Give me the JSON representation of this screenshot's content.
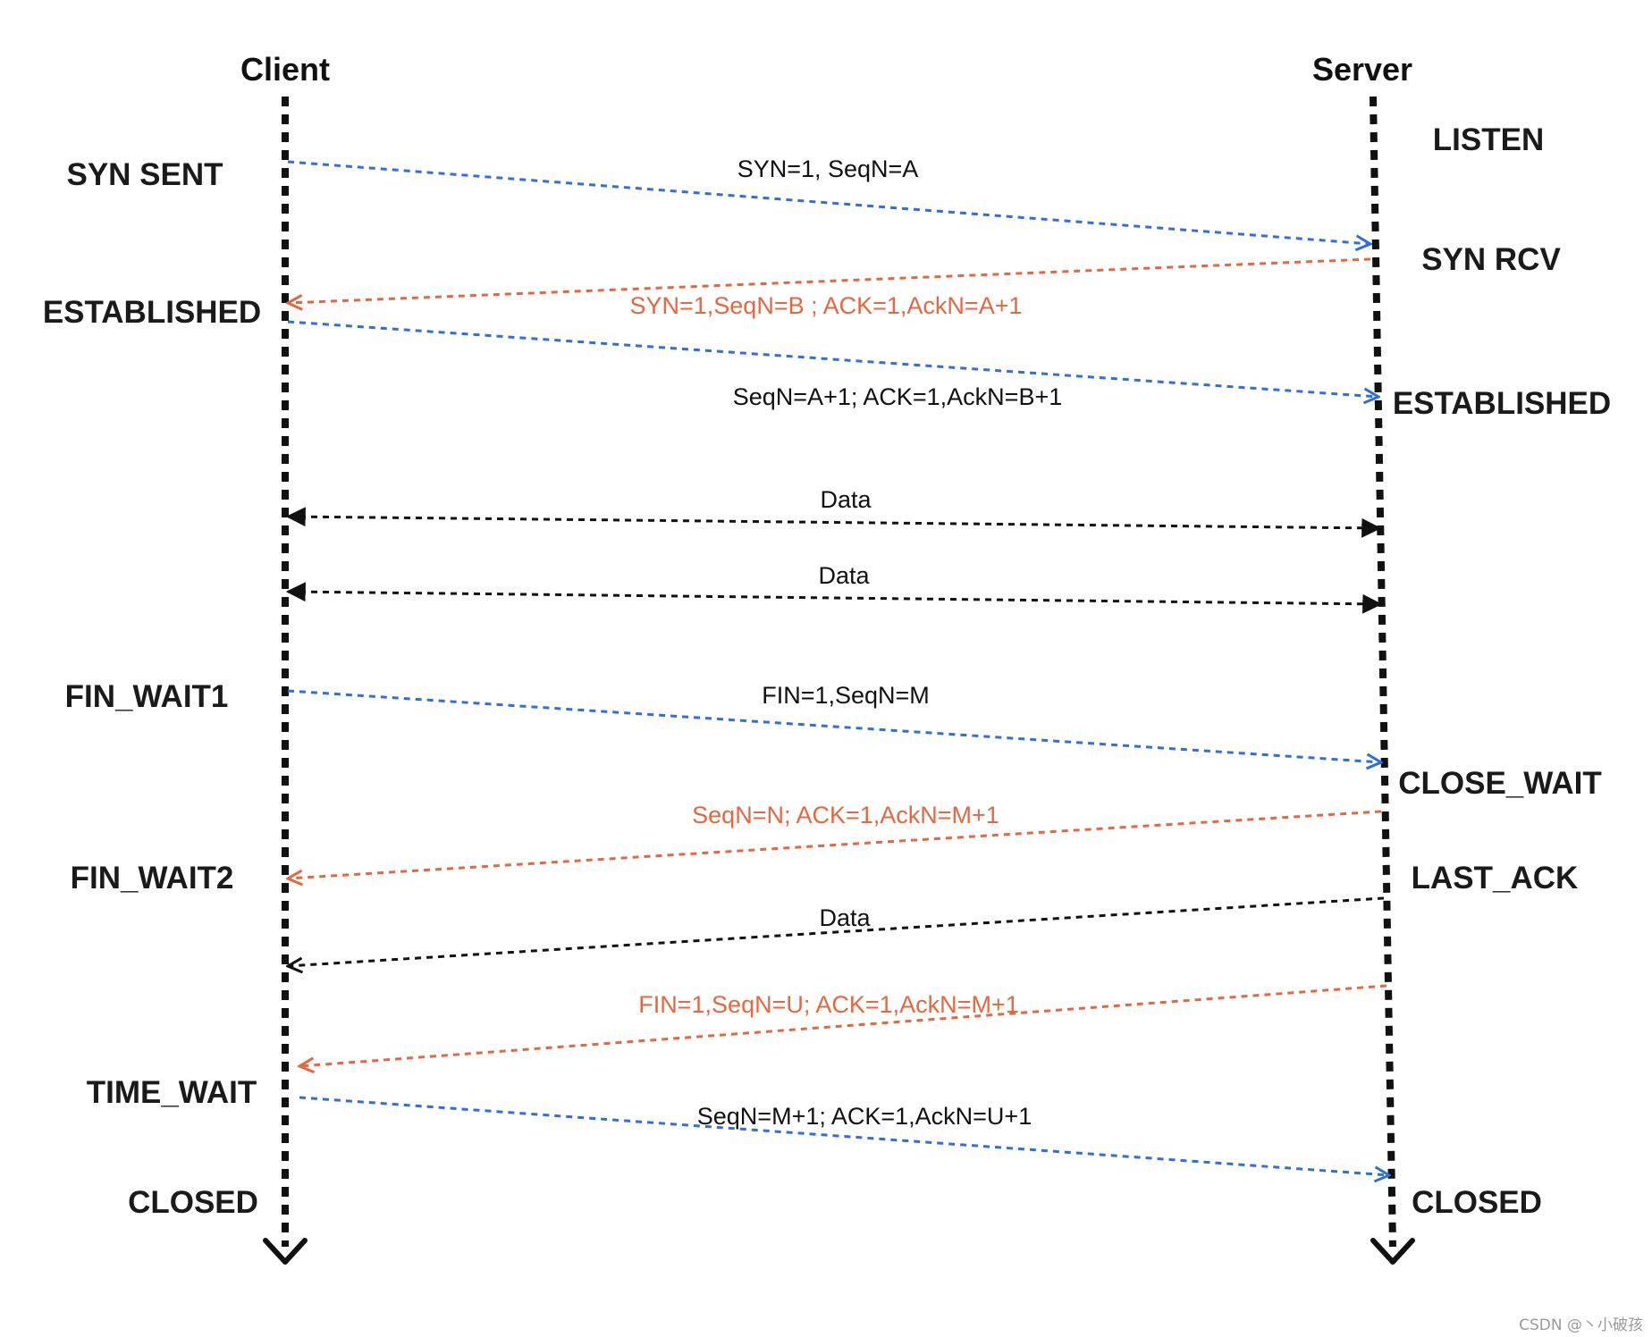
{
  "colors": {
    "request": "#2e6fd9",
    "response": "#e5673f",
    "data": "#111111",
    "lifeline": "#111111"
  },
  "client": {
    "title": "Client",
    "states": [
      "SYN SENT",
      "ESTABLISHED",
      "FIN_WAIT1",
      "FIN_WAIT2",
      "TIME_WAIT",
      "CLOSED"
    ]
  },
  "server": {
    "title": "Server",
    "states": [
      "LISTEN",
      "SYN RCV",
      "ESTABLISHED",
      "CLOSE_WAIT",
      "LAST_ACK",
      "CLOSED"
    ]
  },
  "messages": [
    {
      "label": "SYN=1, SeqN=A",
      "from": "client",
      "to": "server",
      "kind": "request"
    },
    {
      "label": "SYN=1,SeqN=B ; ACK=1,AckN=A+1",
      "from": "server",
      "to": "client",
      "kind": "response"
    },
    {
      "label": "SeqN=A+1; ACK=1,AckN=B+1",
      "from": "client",
      "to": "server",
      "kind": "request"
    },
    {
      "label": "Data",
      "from": "both",
      "to": "both",
      "kind": "data"
    },
    {
      "label": "Data",
      "from": "both",
      "to": "both",
      "kind": "data"
    },
    {
      "label": "FIN=1,SeqN=M",
      "from": "client",
      "to": "server",
      "kind": "request"
    },
    {
      "label": "SeqN=N; ACK=1,AckN=M+1",
      "from": "server",
      "to": "client",
      "kind": "response"
    },
    {
      "label": "Data",
      "from": "server",
      "to": "client",
      "kind": "data"
    },
    {
      "label": "FIN=1,SeqN=U;  ACK=1,AckN=M+1",
      "from": "server",
      "to": "client",
      "kind": "response"
    },
    {
      "label": "SeqN=M+1; ACK=1,AckN=U+1",
      "from": "client",
      "to": "server",
      "kind": "request"
    }
  ],
  "watermark": "CSDN @丶小破孩"
}
